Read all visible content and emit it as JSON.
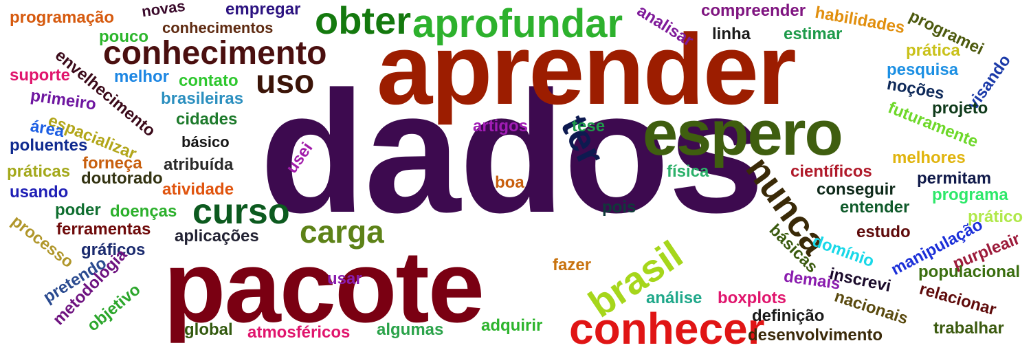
{
  "words": [
    {
      "text": "dados",
      "color": "#3d0a4f"
    },
    {
      "text": "aprender",
      "color": "#9c1d00"
    },
    {
      "text": "pacote",
      "color": "#7a0012"
    },
    {
      "text": "espero",
      "color": "#3f5e0f"
    },
    {
      "text": "conhecer",
      "color": "#e01515"
    },
    {
      "text": "conhecimento",
      "color": "#4a0f0f"
    },
    {
      "text": "aprofundar",
      "color": "#2db12d"
    },
    {
      "text": "obter",
      "color": "#14790e"
    },
    {
      "text": "curso",
      "color": "#0c5a1f"
    },
    {
      "text": "carga",
      "color": "#5d8218"
    },
    {
      "text": "nunca",
      "color": "#3a2a08"
    },
    {
      "text": "ter",
      "color": "#0d1a50"
    },
    {
      "text": "brasil",
      "color": "#a6d61b"
    },
    {
      "text": "uso",
      "color": "#3b1408"
    },
    {
      "text": "programação",
      "color": "#d65a0e"
    },
    {
      "text": "novas",
      "color": "#3a0a2b"
    },
    {
      "text": "empregar",
      "color": "#2b1280"
    },
    {
      "text": "pouco",
      "color": "#2cb62c"
    },
    {
      "text": "conhecimentos",
      "color": "#5e2a10"
    },
    {
      "text": "compreender",
      "color": "#7f1580"
    },
    {
      "text": "habilidades",
      "color": "#e18f0e"
    },
    {
      "text": "analisar",
      "color": "#7f1a9a"
    },
    {
      "text": "linha",
      "color": "#1b1b1b"
    },
    {
      "text": "estimar",
      "color": "#1d9a4a"
    },
    {
      "text": "programei",
      "color": "#4d5a0f"
    },
    {
      "text": "prática",
      "color": "#c9c11a"
    },
    {
      "text": "envelhecimento",
      "color": "#3b0a1a"
    },
    {
      "text": "suporte",
      "color": "#e0156d"
    },
    {
      "text": "melhor",
      "color": "#1c86e3"
    },
    {
      "text": "contato",
      "color": "#2ec72e"
    },
    {
      "text": "primeiro",
      "color": "#6e16a0"
    },
    {
      "text": "brasileiras",
      "color": "#2b8fbf"
    },
    {
      "text": "espacializar",
      "color": "#b2a61a"
    },
    {
      "text": "área",
      "color": "#1c5ee3"
    },
    {
      "text": "cidades",
      "color": "#1d7a2b"
    },
    {
      "text": "poluentes",
      "color": "#0f2a8f"
    },
    {
      "text": "básico",
      "color": "#161616"
    },
    {
      "text": "forneça",
      "color": "#c85f0e"
    },
    {
      "text": "atribuída",
      "color": "#2a2a2a"
    },
    {
      "text": "práticas",
      "color": "#a3a81a"
    },
    {
      "text": "usando",
      "color": "#1f1fb5"
    },
    {
      "text": "doutorado",
      "color": "#333312"
    },
    {
      "text": "atividade",
      "color": "#e0540e"
    },
    {
      "text": "poder",
      "color": "#0f6e2f"
    },
    {
      "text": "doenças",
      "color": "#2cb02c"
    },
    {
      "text": "ferramentas",
      "color": "#6e0a0a"
    },
    {
      "text": "processo",
      "color": "#b0962a"
    },
    {
      "text": "aplicações",
      "color": "#222233"
    },
    {
      "text": "gráficos",
      "color": "#1a2a6e"
    },
    {
      "text": "pretendo",
      "color": "#2a4a8f"
    },
    {
      "text": "metodologia",
      "color": "#6e1380"
    },
    {
      "text": "objetivo",
      "color": "#2ca62c"
    },
    {
      "text": "usar",
      "color": "#8a1cae"
    },
    {
      "text": "global",
      "color": "#335a0f"
    },
    {
      "text": "atmosféricos",
      "color": "#e0156d"
    },
    {
      "text": "algumas",
      "color": "#2ba34a"
    },
    {
      "text": "adquirir",
      "color": "#2db42d"
    },
    {
      "text": "artigos",
      "color": "#a11cb5"
    },
    {
      "text": "tese",
      "color": "#1f9a4a"
    },
    {
      "text": "usei",
      "color": "#a11caa"
    },
    {
      "text": "boa",
      "color": "#c85f0e"
    },
    {
      "text": "física",
      "color": "#2cb16a"
    },
    {
      "text": "pois",
      "color": "#0f3a3a"
    },
    {
      "text": "fazer",
      "color": "#c8720e"
    },
    {
      "text": "análise",
      "color": "#1fa88a"
    },
    {
      "text": "boxplots",
      "color": "#e0156d"
    },
    {
      "text": "definição",
      "color": "#1a1a1a"
    },
    {
      "text": "desenvolvimento",
      "color": "#3b2a0a"
    },
    {
      "text": "científicos",
      "color": "#b01a2a"
    },
    {
      "text": "conseguir",
      "color": "#0f2a1a"
    },
    {
      "text": "entender",
      "color": "#0f5a2a"
    },
    {
      "text": "estudo",
      "color": "#5e0a0a"
    },
    {
      "text": "básicas",
      "color": "#3a5a0f"
    },
    {
      "text": "domínio",
      "color": "#18d8e8"
    },
    {
      "text": "demais",
      "color": "#8a1cae"
    },
    {
      "text": "inscrevi",
      "color": "#1a0a2a"
    },
    {
      "text": "nacionais",
      "color": "#5a4a0f"
    },
    {
      "text": "relacionar",
      "color": "#5e0a0a"
    },
    {
      "text": "trabalhar",
      "color": "#3b5a0f"
    },
    {
      "text": "pesquisa",
      "color": "#1b8fe3"
    },
    {
      "text": "visando",
      "color": "#1b3aa8"
    },
    {
      "text": "noções",
      "color": "#0f2a5a"
    },
    {
      "text": "projeto",
      "color": "#0f3a1a"
    },
    {
      "text": "futuramente",
      "color": "#6ed82a"
    },
    {
      "text": "melhores",
      "color": "#e0b40e"
    },
    {
      "text": "permitam",
      "color": "#101a4a"
    },
    {
      "text": "programa",
      "color": "#2ee86a"
    },
    {
      "text": "manipulação",
      "color": "#1b2fd8"
    },
    {
      "text": "prático",
      "color": "#b0e84a"
    },
    {
      "text": "purpleair",
      "color": "#9c1a3a"
    },
    {
      "text": "populacional",
      "color": "#3a6e0f"
    }
  ]
}
